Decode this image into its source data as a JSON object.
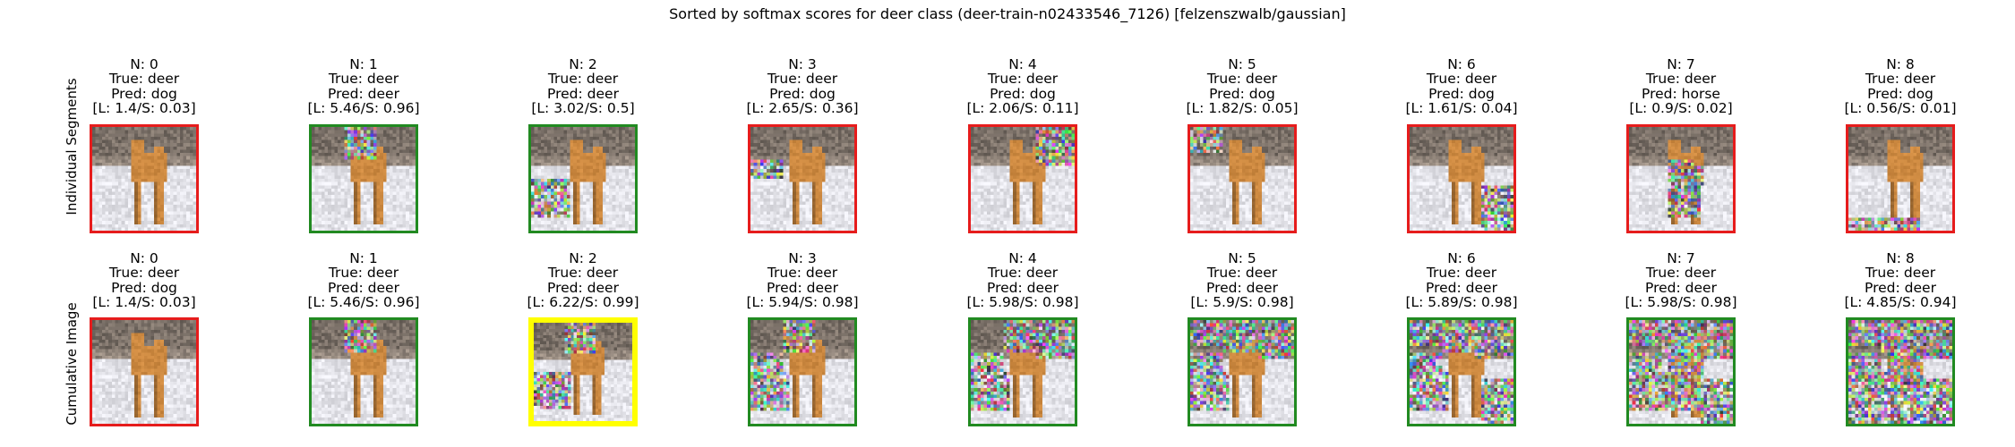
{
  "title": "Sorted by softmax scores for deer class (deer-train-n02433546_7126) [felzenszwalb/gaussian]",
  "colors": {
    "correct": "#218a21",
    "wrong": "#e61c1c",
    "best": "#ffff00"
  },
  "rows": [
    {
      "label": "Individual Segments",
      "kind": "individual",
      "cells": [
        {
          "n": "N: 0",
          "true": "True: deer",
          "pred": "Pred: dog",
          "score": "[L: 1.4/S: 0.03]",
          "status": "wrong",
          "noise": []
        },
        {
          "n": "N: 1",
          "true": "True: deer",
          "pred": "Pred: deer",
          "score": "[L: 5.46/S: 0.96]",
          "status": "correct",
          "noise": [
            1
          ]
        },
        {
          "n": "N: 2",
          "true": "True: deer",
          "pred": "Pred: deer",
          "score": "[L: 3.02/S: 0.5]",
          "status": "correct",
          "noise": [
            2
          ]
        },
        {
          "n": "N: 3",
          "true": "True: deer",
          "pred": "Pred: dog",
          "score": "[L: 2.65/S: 0.36]",
          "status": "wrong",
          "noise": [
            3
          ]
        },
        {
          "n": "N: 4",
          "true": "True: deer",
          "pred": "Pred: dog",
          "score": "[L: 2.06/S: 0.11]",
          "status": "wrong",
          "noise": [
            4
          ]
        },
        {
          "n": "N: 5",
          "true": "True: deer",
          "pred": "Pred: dog",
          "score": "[L: 1.82/S: 0.05]",
          "status": "wrong",
          "noise": [
            5
          ]
        },
        {
          "n": "N: 6",
          "true": "True: deer",
          "pred": "Pred: dog",
          "score": "[L: 1.61/S: 0.04]",
          "status": "wrong",
          "noise": [
            6
          ]
        },
        {
          "n": "N: 7",
          "true": "True: deer",
          "pred": "Pred: horse",
          "score": "[L: 0.9/S: 0.02]",
          "status": "wrong",
          "noise": [
            7
          ]
        },
        {
          "n": "N: 8",
          "true": "True: deer",
          "pred": "Pred: dog",
          "score": "[L: 0.56/S: 0.01]",
          "status": "wrong",
          "noise": [
            8
          ]
        }
      ]
    },
    {
      "label": "Cumulative Image",
      "kind": "cumulative",
      "cells": [
        {
          "n": "N: 0",
          "true": "True: deer",
          "pred": "Pred: dog",
          "score": "[L: 1.4/S: 0.03]",
          "status": "wrong",
          "noise": []
        },
        {
          "n": "N: 1",
          "true": "True: deer",
          "pred": "Pred: deer",
          "score": "[L: 5.46/S: 0.96]",
          "status": "correct",
          "noise": [
            1
          ]
        },
        {
          "n": "N: 2",
          "true": "True: deer",
          "pred": "Pred: deer",
          "score": "[L: 6.22/S: 0.99]",
          "status": "best",
          "noise": [
            1,
            2
          ]
        },
        {
          "n": "N: 3",
          "true": "True: deer",
          "pred": "Pred: deer",
          "score": "[L: 5.94/S: 0.98]",
          "status": "correct",
          "noise": [
            1,
            2,
            3
          ]
        },
        {
          "n": "N: 4",
          "true": "True: deer",
          "pred": "Pred: deer",
          "score": "[L: 5.98/S: 0.98]",
          "status": "correct",
          "noise": [
            1,
            2,
            3,
            4
          ]
        },
        {
          "n": "N: 5",
          "true": "True: deer",
          "pred": "Pred: deer",
          "score": "[L: 5.9/S: 0.98]",
          "status": "correct",
          "noise": [
            1,
            2,
            3,
            4,
            5
          ]
        },
        {
          "n": "N: 6",
          "true": "True: deer",
          "pred": "Pred: deer",
          "score": "[L: 5.89/S: 0.98]",
          "status": "correct",
          "noise": [
            1,
            2,
            3,
            4,
            5,
            6
          ]
        },
        {
          "n": "N: 7",
          "true": "True: deer",
          "pred": "Pred: deer",
          "score": "[L: 5.98/S: 0.98]",
          "status": "correct",
          "noise": [
            1,
            2,
            3,
            4,
            5,
            6,
            7
          ]
        },
        {
          "n": "N: 8",
          "true": "True: deer",
          "pred": "Pred: deer",
          "score": "[L: 4.85/S: 0.94]",
          "status": "correct",
          "noise": [
            1,
            2,
            3,
            4,
            5,
            6,
            7,
            8
          ]
        }
      ]
    }
  ]
}
